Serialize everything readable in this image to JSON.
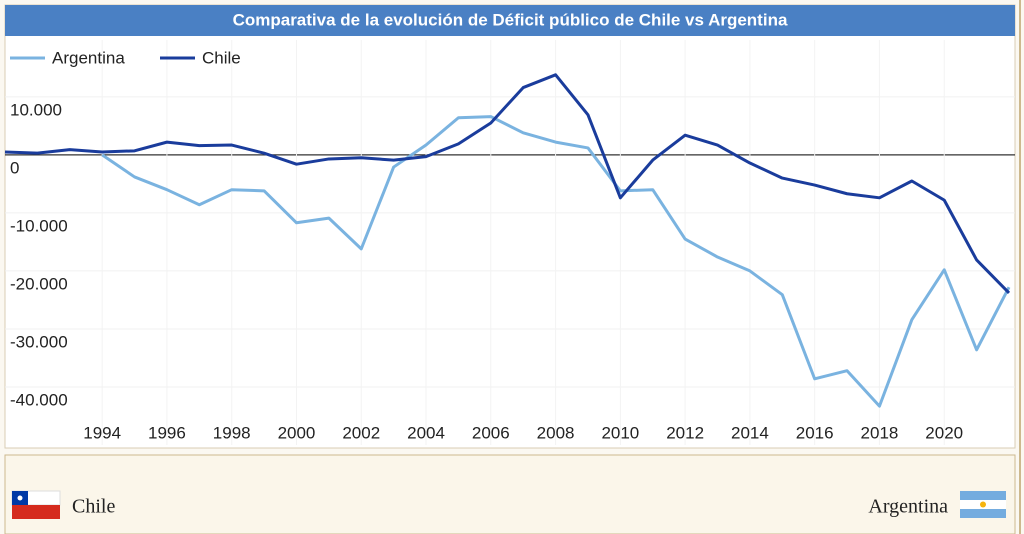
{
  "chart_data": {
    "type": "line",
    "title": "Comparativa de la evolución de Déficit público de Chile vs Argentina",
    "x": [
      1991,
      1992,
      1993,
      1994,
      1995,
      1996,
      1997,
      1998,
      1999,
      2000,
      2001,
      2002,
      2003,
      2004,
      2005,
      2006,
      2007,
      2008,
      2009,
      2010,
      2011,
      2012,
      2013,
      2014,
      2015,
      2016,
      2017,
      2018,
      2019,
      2020,
      2021,
      2022
    ],
    "series": [
      {
        "name": "Argentina",
        "color": "#7ab3e0",
        "values": [
          null,
          null,
          null,
          0,
          -3800,
          -6000,
          -8600,
          -6000,
          -6200,
          -11700,
          -10900,
          -16200,
          -2100,
          1700,
          6400,
          6600,
          3800,
          2200,
          1200,
          -6200,
          -6000,
          -14500,
          -17600,
          -20000,
          -24100,
          -38600,
          -37200,
          -43300,
          -28400,
          -19800,
          -33600,
          -22800
        ]
      },
      {
        "name": "Chile",
        "color": "#1a3c9c",
        "values": [
          500,
          300,
          900,
          500,
          700,
          2200,
          1600,
          1700,
          300,
          -1600,
          -700,
          -500,
          -900,
          -300,
          1900,
          5500,
          11600,
          13800,
          6900,
          -7400,
          -900,
          3400,
          1700,
          -1400,
          -4000,
          -5200,
          -6700,
          -7400,
          -4500,
          -7800,
          -18100,
          -23800
        ]
      }
    ],
    "xlim": [
      1991,
      2022
    ],
    "xticks": [
      1994,
      1996,
      1998,
      2000,
      2002,
      2004,
      2006,
      2008,
      2010,
      2012,
      2014,
      2016,
      2018,
      2020
    ],
    "ylim": [
      -50000,
      19800
    ],
    "yticks": [
      {
        "value": 10000,
        "label": "10.000"
      },
      0,
      {
        "value": -10000,
        "label": "-10.000"
      },
      {
        "value": -20000,
        "label": "-20.000"
      },
      {
        "value": -30000,
        "label": "-30.000"
      },
      {
        "value": -40000,
        "label": "-40.000"
      }
    ],
    "grid": true
  },
  "footer": {
    "left": "Chile",
    "right": "Argentina"
  }
}
